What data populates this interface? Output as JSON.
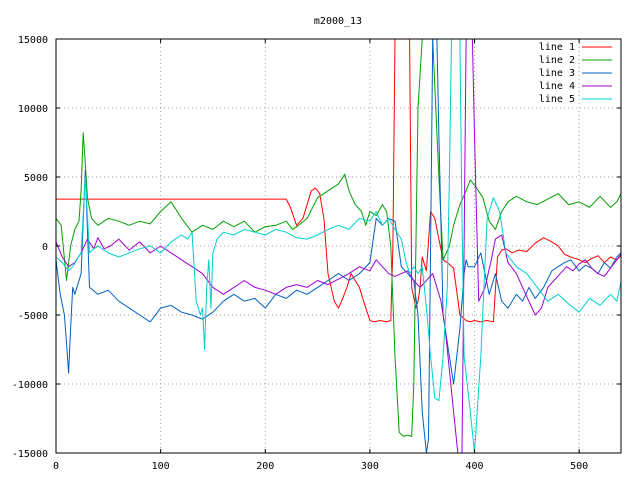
{
  "chart_data": {
    "type": "line",
    "title": "m2000_13",
    "xlabel": "",
    "ylabel": "",
    "xlim": [
      0,
      540
    ],
    "ylim": [
      -15000,
      15000
    ],
    "xticks": [
      0,
      100,
      200,
      300,
      400,
      500
    ],
    "yticks": [
      -15000,
      -10000,
      -5000,
      0,
      5000,
      10000,
      15000
    ],
    "xtick_labels": [
      "0",
      "100",
      "200",
      "300",
      "400",
      "500"
    ],
    "ytick_labels": [
      "-15000",
      "-10000",
      "-5000",
      "0",
      "5000",
      "10000",
      "15000"
    ],
    "grid": true,
    "legend_position": "top-right",
    "series": [
      {
        "name": "line 1",
        "color": "#ff0000",
        "x": [
          0,
          220,
          224,
          230,
          236,
          240,
          244,
          248,
          252,
          256,
          260,
          266,
          270,
          274,
          278,
          282,
          286,
          290,
          294,
          300,
          304,
          310,
          316,
          320,
          322,
          324,
          326,
          328,
          330,
          332,
          334,
          336,
          338,
          340,
          344,
          346,
          348,
          350,
          354,
          358,
          362,
          366,
          370,
          374,
          380,
          386,
          392,
          396,
          400,
          406,
          412,
          418,
          422,
          426,
          430,
          436,
          442,
          450,
          458,
          466,
          474,
          480,
          486,
          492,
          500,
          506,
          512,
          518,
          524,
          530,
          536,
          540
        ],
        "y": [
          3400,
          3400,
          2800,
          1500,
          2000,
          3000,
          4000,
          4200,
          3800,
          2000,
          -2000,
          -4000,
          -4500,
          -3800,
          -3000,
          -2000,
          -2500,
          -3000,
          -4000,
          -5400,
          -5500,
          -5400,
          -5500,
          -5400,
          0,
          15000,
          15000,
          15000,
          15000,
          15000,
          15000,
          15000,
          15000,
          -3000,
          -4500,
          -4000,
          -3000,
          -800,
          -1800,
          2500,
          2000,
          500,
          -1000,
          -1200,
          -1600,
          -5000,
          -5400,
          -5500,
          -5400,
          -5500,
          -5400,
          -5500,
          -800,
          -300,
          -200,
          -500,
          -300,
          -400,
          200,
          600,
          300,
          0,
          -600,
          -800,
          -1000,
          -1200,
          -900,
          -700,
          -1200,
          -800,
          -1000,
          -700
        ]
      },
      {
        "name": "line 2",
        "color": "#00a000",
        "x": [
          0,
          5,
          10,
          14,
          18,
          22,
          24,
          26,
          28,
          30,
          34,
          40,
          50,
          60,
          70,
          80,
          90,
          100,
          110,
          120,
          130,
          140,
          150,
          160,
          170,
          180,
          190,
          200,
          210,
          220,
          226,
          232,
          240,
          250,
          260,
          270,
          276,
          280,
          286,
          292,
          296,
          300,
          306,
          312,
          316,
          320,
          324,
          328,
          332,
          336,
          340,
          342,
          344,
          346,
          350,
          356,
          360,
          366,
          370,
          376,
          380,
          386,
          392,
          396,
          402,
          408,
          414,
          420,
          426,
          432,
          440,
          450,
          460,
          470,
          480,
          490,
          500,
          510,
          520,
          530,
          536,
          540
        ],
        "y": [
          2000,
          1500,
          -2500,
          0,
          1200,
          1800,
          4000,
          8200,
          6000,
          3500,
          2000,
          1500,
          2000,
          1800,
          1500,
          1800,
          1600,
          2500,
          3200,
          2000,
          1000,
          1500,
          1200,
          1800,
          1400,
          1800,
          1000,
          1400,
          1500,
          1800,
          1200,
          1500,
          2000,
          3500,
          4000,
          4500,
          5200,
          4000,
          3000,
          2500,
          1500,
          2500,
          2200,
          3000,
          2500,
          0,
          -8000,
          -13500,
          -13800,
          -13700,
          -13800,
          -10000,
          0,
          10000,
          15000,
          15000,
          15000,
          5000,
          -1000,
          0,
          1500,
          3000,
          4000,
          4800,
          4200,
          3500,
          1800,
          1200,
          2500,
          3200,
          3600,
          3200,
          3000,
          3400,
          3800,
          3000,
          3200,
          2800,
          3600,
          2800,
          3200,
          3800
        ]
      },
      {
        "name": "line 3",
        "color": "#0060c0",
        "x": [
          0,
          4,
          8,
          10,
          12,
          14,
          16,
          18,
          20,
          24,
          28,
          32,
          40,
          50,
          60,
          70,
          80,
          90,
          100,
          110,
          120,
          130,
          140,
          150,
          160,
          170,
          180,
          190,
          200,
          210,
          220,
          230,
          240,
          250,
          260,
          270,
          280,
          290,
          300,
          306,
          312,
          318,
          324,
          330,
          336,
          342,
          346,
          350,
          354,
          356,
          358,
          360,
          362,
          364,
          366,
          370,
          376,
          380,
          386,
          390,
          392,
          394,
          400,
          406,
          410,
          414,
          420,
          426,
          432,
          440,
          446,
          452,
          458,
          466,
          474,
          480,
          486,
          492,
          500,
          506,
          512,
          518,
          524,
          530,
          536,
          540
        ],
        "y": [
          -1000,
          -3500,
          -5000,
          -7000,
          -9200,
          -6000,
          -3000,
          -3500,
          -3000,
          -2000,
          5500,
          -3000,
          -3500,
          -3200,
          -4000,
          -4500,
          -5000,
          -5500,
          -4500,
          -4300,
          -4800,
          -5000,
          -5300,
          -4800,
          -4000,
          -3500,
          -4000,
          -3800,
          -4500,
          -3500,
          -3800,
          -3200,
          -3500,
          -3000,
          -2500,
          -2000,
          -2500,
          -2000,
          -1200,
          2000,
          1500,
          2000,
          1800,
          -1500,
          -2000,
          -2500,
          -5000,
          -12000,
          -15000,
          -14000,
          0,
          15000,
          15000,
          15000,
          8000,
          -5000,
          -8000,
          -10000,
          -6000,
          -2000,
          -1000,
          -1500,
          -1500,
          -500,
          -2000,
          -3500,
          -2000,
          -4000,
          -4500,
          -3500,
          -4000,
          -3000,
          -3800,
          -3000,
          -1800,
          -1500,
          -1200,
          -1000,
          -1800,
          -1400,
          -1600,
          -2000,
          -1200,
          -1600,
          -800,
          -500
        ]
      },
      {
        "name": "line 4",
        "color": "#a000d0",
        "x": [
          0,
          6,
          12,
          18,
          24,
          30,
          36,
          40,
          46,
          52,
          60,
          70,
          80,
          90,
          100,
          110,
          120,
          130,
          140,
          150,
          160,
          170,
          180,
          190,
          200,
          210,
          220,
          230,
          240,
          250,
          260,
          270,
          280,
          290,
          300,
          306,
          312,
          318,
          324,
          330,
          336,
          342,
          348,
          354,
          360,
          364,
          368,
          372,
          376,
          380,
          384,
          388,
          390,
          392,
          394,
          396,
          398,
          400,
          404,
          410,
          416,
          420,
          426,
          432,
          440,
          446,
          452,
          458,
          464,
          470,
          476,
          482,
          488,
          494,
          500,
          506,
          512,
          518,
          524,
          530,
          536,
          540
        ],
        "y": [
          300,
          -800,
          -1500,
          -1200,
          -500,
          500,
          -200,
          600,
          -200,
          0,
          500,
          -300,
          300,
          -500,
          0,
          -500,
          -1000,
          -1500,
          -2000,
          -3000,
          -3500,
          -3000,
          -2500,
          -3000,
          -3200,
          -3500,
          -3000,
          -2800,
          -3000,
          -2500,
          -2800,
          -2400,
          -2000,
          -1500,
          -1800,
          -1000,
          -1500,
          -2000,
          -2200,
          -2000,
          -1800,
          -2500,
          -3000,
          -2500,
          -2000,
          -3000,
          -4000,
          -6000,
          -9000,
          -12000,
          -15000,
          -15000,
          0,
          15000,
          15000,
          15000,
          15000,
          8000,
          -4000,
          -3000,
          -1000,
          500,
          800,
          -1200,
          -2000,
          -3000,
          -4000,
          -5000,
          -4500,
          -3000,
          -2500,
          -2000,
          -1500,
          -1800,
          -1300,
          -1000,
          -1600,
          -2000,
          -2200,
          -1600,
          -1000,
          -600
        ]
      },
      {
        "name": "line 5",
        "color": "#00d0d0",
        "x": [
          0,
          6,
          12,
          16,
          20,
          24,
          28,
          32,
          36,
          40,
          50,
          60,
          70,
          80,
          90,
          100,
          110,
          120,
          126,
          130,
          134,
          138,
          140,
          142,
          144,
          146,
          148,
          150,
          154,
          160,
          170,
          180,
          190,
          200,
          210,
          220,
          230,
          240,
          250,
          260,
          270,
          280,
          290,
          300,
          306,
          312,
          318,
          324,
          330,
          334,
          338,
          342,
          346,
          350,
          354,
          358,
          362,
          366,
          370,
          374,
          376,
          378,
          380,
          384,
          386,
          388,
          390,
          396,
          400,
          406,
          412,
          418,
          424,
          430,
          440,
          450,
          460,
          470,
          480,
          490,
          500,
          510,
          520,
          530,
          536,
          540
        ],
        "y": [
          -800,
          -1200,
          -1800,
          -1500,
          -1000,
          -500,
          5000,
          -500,
          -200,
          0,
          -500,
          -800,
          -500,
          -200,
          0,
          -500,
          300,
          800,
          500,
          1000,
          -4000,
          -5000,
          -4500,
          -7500,
          -3000,
          -1000,
          -4500,
          -500,
          500,
          1000,
          800,
          1200,
          1000,
          800,
          1200,
          1000,
          600,
          500,
          800,
          1200,
          1500,
          1200,
          2000,
          1800,
          2500,
          1500,
          2000,
          1200,
          500,
          -1000,
          -2000,
          -1500,
          -2000,
          -1500,
          -4500,
          -8000,
          -11000,
          -11200,
          -8000,
          -3000,
          5000,
          15000,
          15000,
          15000,
          15000,
          2000,
          -8000,
          -12000,
          -15000,
          -8000,
          2000,
          3500,
          2500,
          -500,
          -1500,
          -2000,
          -3000,
          -4000,
          -3500,
          -4200,
          -4800,
          -3800,
          -4300,
          -3500,
          -4000,
          -2600
        ]
      }
    ]
  }
}
